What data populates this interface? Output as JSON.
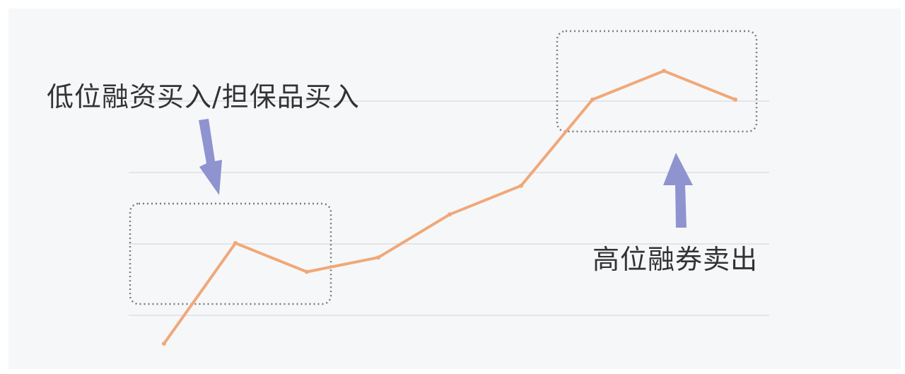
{
  "annotations": {
    "low_buy": "低位融资买入/担保品买入",
    "high_sell": "高位融券卖出"
  },
  "colors": {
    "line": "#f0a878",
    "arrow": "#8f93cf",
    "grid": "#e3e5e9",
    "box": "#7a7a7a",
    "background": "#f6f7f9",
    "text": "#333333"
  },
  "chart_data": {
    "type": "line",
    "x": [
      0,
      1,
      2,
      3,
      4,
      5,
      6,
      7,
      8
    ],
    "values": [
      0,
      7,
      5,
      6,
      9,
      11,
      17,
      19,
      17
    ],
    "grid": true
  }
}
